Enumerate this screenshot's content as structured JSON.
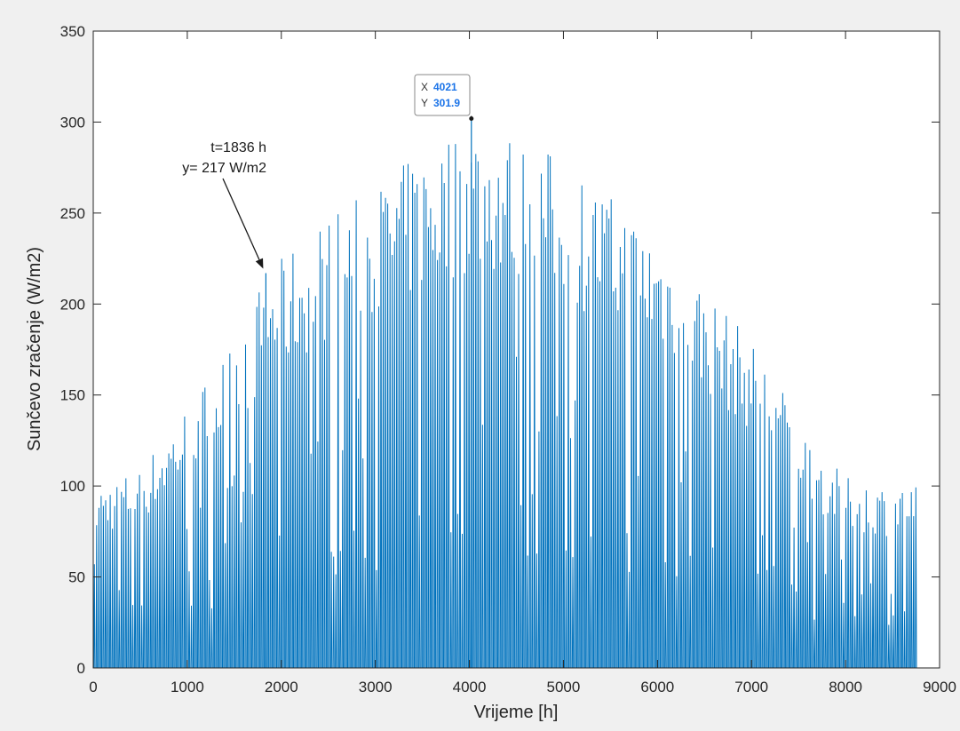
{
  "colors": {
    "series": "#0072bd",
    "datatip_value": "#1a73e8",
    "axes_background": "#ffffff",
    "figure_background": "#f0f0f0"
  },
  "chart_data": {
    "type": "line",
    "title": "",
    "xlabel": "Vrijeme [h]",
    "ylabel": "Sunčevo zračenje (W/m2)",
    "xlim": [
      0,
      9000
    ],
    "ylim": [
      0,
      350
    ],
    "x_ticks": [
      0,
      1000,
      2000,
      3000,
      4000,
      5000,
      6000,
      7000,
      8000,
      9000
    ],
    "y_ticks": [
      0,
      50,
      100,
      150,
      200,
      250,
      300,
      350
    ],
    "x_tick_labels": [
      "0",
      "1000",
      "2000",
      "3000",
      "4000",
      "5000",
      "6000",
      "7000",
      "8000",
      "9000"
    ],
    "y_tick_labels": [
      "0",
      "50",
      "100",
      "150",
      "200",
      "250",
      "300",
      "350"
    ],
    "grid": false,
    "series": [
      {
        "description": "hourly values over one year (0-8760 h); daily peaks follow a seasonal arch",
        "x_range": [
          0,
          8760
        ],
        "daily_peak_envelope": {
          "x": [
            0,
            500,
            1000,
            1500,
            1836,
            2000,
            2500,
            3000,
            3500,
            4021,
            4500,
            5000,
            5500,
            6000,
            6500,
            7000,
            7500,
            7700,
            8000,
            8500,
            8760
          ],
          "y": [
            100,
            110,
            145,
            180,
            217,
            225,
            250,
            265,
            285,
            301.9,
            295,
            280,
            260,
            240,
            210,
            180,
            140,
            120,
            105,
            100,
            100
          ]
        }
      }
    ],
    "annotations": [
      {
        "text_line1": "t=1836 h",
        "text_line2": "y= 217 W/m2",
        "x": 1836,
        "y": 217,
        "arrow": true
      }
    ],
    "datatip": {
      "x_key": "X",
      "x_value": "4021",
      "y_key": "Y",
      "y_value": "301.9",
      "x": 4021,
      "y": 301.9
    }
  }
}
